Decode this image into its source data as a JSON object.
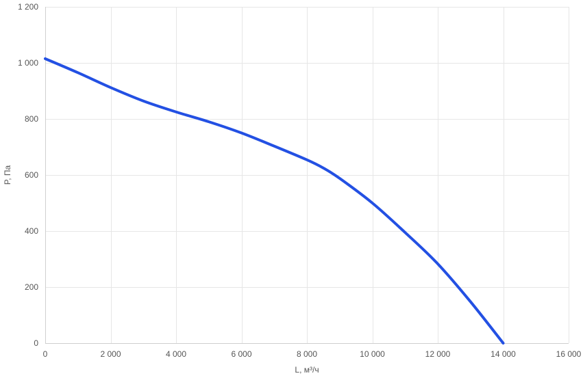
{
  "chart_data": {
    "type": "line",
    "title": "",
    "xlabel": "L, м³/ч",
    "ylabel": "P, Па",
    "xlim": [
      0,
      16000
    ],
    "ylim": [
      0,
      1200
    ],
    "x_ticks": [
      0,
      2000,
      4000,
      6000,
      8000,
      10000,
      12000,
      14000,
      16000
    ],
    "x_tick_labels": [
      "0",
      "2 000",
      "4 000",
      "6 000",
      "8 000",
      "10 000",
      "12 000",
      "14 000",
      "16 000"
    ],
    "y_ticks": [
      0,
      200,
      400,
      600,
      800,
      1000,
      1200
    ],
    "y_tick_labels": [
      "0",
      "200",
      "400",
      "600",
      "800",
      "1 000",
      "1 200"
    ],
    "grid": true,
    "legend": "none",
    "series": [
      {
        "color": "#2350e3",
        "x": [
          0,
          1000,
          2000,
          3000,
          4000,
          5000,
          6000,
          7000,
          8000,
          8500,
          9000,
          10000,
          11000,
          12000,
          13000,
          14000
        ],
        "y": [
          1015,
          965,
          912,
          864,
          825,
          790,
          750,
          703,
          654,
          625,
          588,
          500,
          395,
          283,
          148,
          0
        ]
      }
    ]
  }
}
